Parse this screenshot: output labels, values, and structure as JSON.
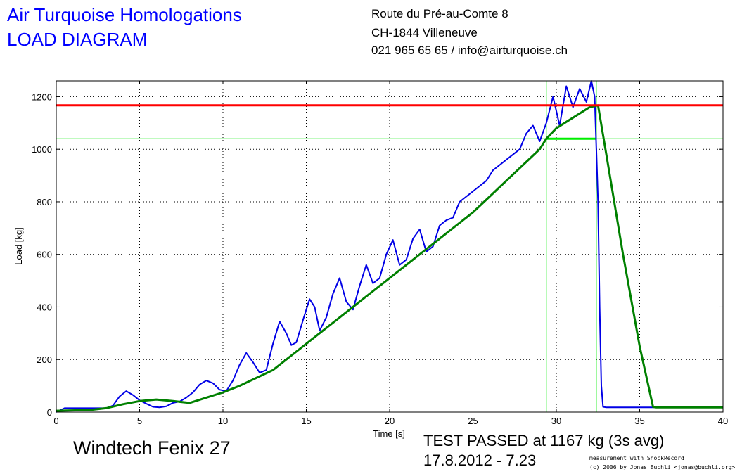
{
  "header": {
    "title_line1": "Air Turquoise Homologations",
    "title_line2": "LOAD DIAGRAM",
    "address_line1": "Route du Pré-au-Comte 8",
    "address_line2": "CH-1844 Villeneuve",
    "address_line3": "021 965 65 65 / info@airturquoise.ch"
  },
  "footer": {
    "model": "Windtech Fenix 27",
    "result": "TEST PASSED at 1167 kg (3s avg)",
    "datetime": "17.8.2012 - 7.23",
    "credit_line1": "measurement with ShockRecord",
    "credit_line2": "(c) 2006 by Jonas Buchli <jonas@buchli.org>"
  },
  "colors": {
    "raw_load": "#0000e6",
    "avg_load": "#008000",
    "limit_line": "#ff0000",
    "marker_lines": "#00ee00",
    "hold_segment": "#00ee00"
  },
  "chart_data": {
    "type": "line",
    "title": "",
    "xlabel": "Time [s]",
    "ylabel": "Load [kg]",
    "xlim": [
      0,
      40
    ],
    "ylim": [
      0,
      1260
    ],
    "xticks": [
      0,
      5,
      10,
      15,
      20,
      25,
      30,
      35,
      40
    ],
    "yticks": [
      0,
      200,
      400,
      600,
      800,
      1000,
      1200
    ],
    "grid": true,
    "series": [
      {
        "key": "raw",
        "x": [
          0,
          0.5,
          1,
          2,
          3,
          3.4,
          3.8,
          4.2,
          4.6,
          5.0,
          5.4,
          5.8,
          6.2,
          6.6,
          7.0,
          7.4,
          7.8,
          8.2,
          8.6,
          9.0,
          9.4,
          9.8,
          10.2,
          10.6,
          11.0,
          11.4,
          11.8,
          12.2,
          12.6,
          13.0,
          13.4,
          13.8,
          14.1,
          14.4,
          14.8,
          15.2,
          15.5,
          15.8,
          16.2,
          16.6,
          17.0,
          17.4,
          17.8,
          18.2,
          18.6,
          19.0,
          19.4,
          19.8,
          20.2,
          20.6,
          21.0,
          21.4,
          21.8,
          22.2,
          22.6,
          23.0,
          23.4,
          23.8,
          24.2,
          24.6,
          25.0,
          25.4,
          25.8,
          26.2,
          26.6,
          27.0,
          27.4,
          27.8,
          28.2,
          28.6,
          29.0,
          29.4,
          29.8,
          30.2,
          30.6,
          31.0,
          31.4,
          31.8,
          32.1,
          32.3,
          32.5,
          32.6,
          32.7,
          32.8,
          33.0,
          34,
          35,
          36,
          37,
          38,
          39,
          40
        ],
        "y": [
          0,
          15,
          15,
          15,
          15,
          25,
          60,
          80,
          65,
          45,
          32,
          20,
          18,
          22,
          35,
          40,
          55,
          75,
          105,
          120,
          110,
          85,
          80,
          120,
          180,
          225,
          190,
          150,
          160,
          260,
          345,
          300,
          255,
          265,
          350,
          430,
          400,
          310,
          360,
          450,
          510,
          420,
          390,
          480,
          560,
          490,
          510,
          600,
          655,
          560,
          580,
          660,
          695,
          610,
          630,
          710,
          730,
          740,
          800,
          820,
          840,
          860,
          880,
          920,
          940,
          960,
          980,
          1000,
          1060,
          1090,
          1030,
          1100,
          1200,
          1090,
          1240,
          1160,
          1230,
          1180,
          1260,
          1200,
          800,
          400,
          100,
          20,
          18,
          18,
          18,
          18,
          18,
          18,
          18,
          18
        ]
      },
      {
        "key": "avg3s",
        "x": [
          0,
          2,
          3,
          4,
          5,
          6,
          7,
          8,
          9,
          10,
          11,
          12,
          13,
          14,
          15,
          16,
          17,
          18,
          19,
          20,
          21,
          22,
          23,
          24,
          25,
          26,
          27,
          28,
          29,
          29.4,
          30,
          31,
          32,
          32.5,
          33,
          34,
          35,
          35.8,
          36,
          37,
          38,
          39,
          40
        ],
        "y": [
          5,
          8,
          15,
          30,
          42,
          48,
          42,
          35,
          55,
          75,
          100,
          130,
          160,
          210,
          260,
          310,
          360,
          410,
          460,
          510,
          560,
          610,
          660,
          710,
          760,
          820,
          880,
          940,
          1000,
          1040,
          1080,
          1120,
          1160,
          1167,
          980,
          600,
          250,
          20,
          18,
          18,
          18,
          18,
          18
        ]
      }
    ],
    "reference_lines": {
      "limit_y": 1167,
      "marker_y": 1040,
      "marker_x1": 29.4,
      "marker_x2": 32.4
    }
  }
}
